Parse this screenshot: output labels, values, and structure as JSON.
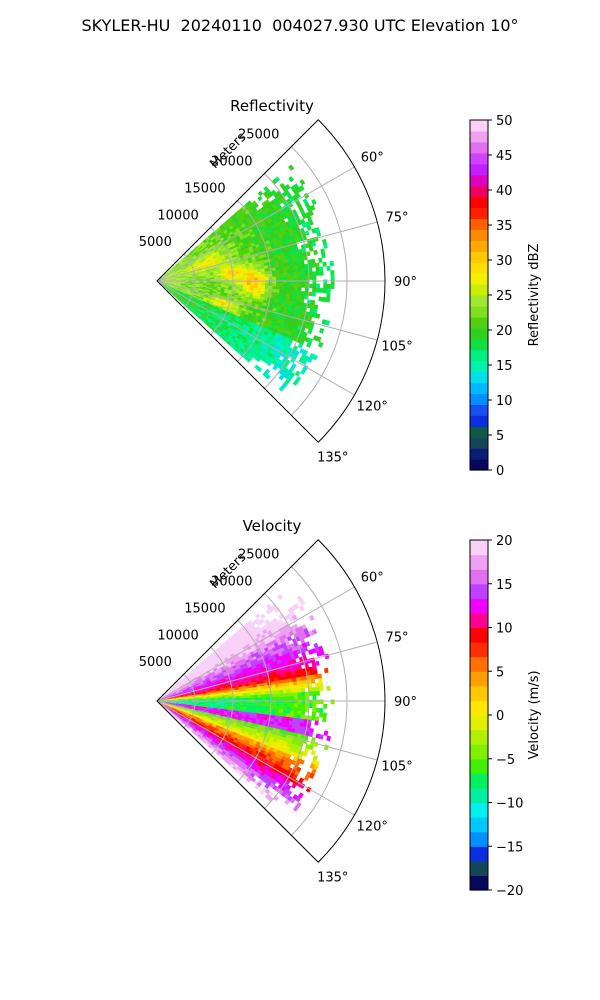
{
  "suptitle": "SKYLER-HU  20240110  004027.930 UTC Elevation 10°",
  "chart_data": [
    {
      "type": "heatmap",
      "projection": "polar-sector",
      "title": "Reflectivity",
      "range_label": "Meters",
      "range_ticks": [
        5000,
        10000,
        15000,
        20000,
        25000
      ],
      "range_tick_labels": [
        "5000",
        "10000",
        "15000",
        "20000",
        "25000"
      ],
      "rmax": 30000,
      "data_extent_m": 23000,
      "azimuth_range_deg": [
        45,
        135
      ],
      "azimuth_ticks": [
        60,
        75,
        90,
        105,
        120,
        135
      ],
      "azimuth_tick_labels": [
        "60°",
        "75°",
        "90°",
        "105°",
        "120°",
        "135°"
      ],
      "colorbar": {
        "label": "Reflectivity dBZ",
        "vmin": 0,
        "vmax": 50,
        "ticks": [
          0,
          5,
          10,
          15,
          20,
          25,
          30,
          35,
          40,
          45,
          50
        ],
        "tick_labels": [
          "0",
          "5",
          "10",
          "15",
          "20",
          "25",
          "30",
          "35",
          "40",
          "45",
          "50"
        ],
        "colors": [
          "#08085a",
          "#0a1e78",
          "#14465a",
          "#0f5a46",
          "#0a2ee0",
          "#1a4ef0",
          "#0090ff",
          "#00b8ff",
          "#00e0e8",
          "#00f0b0",
          "#00f080",
          "#10e040",
          "#30d020",
          "#50d010",
          "#80e020",
          "#a0e830",
          "#c8f000",
          "#f0f000",
          "#ffe000",
          "#ffc800",
          "#ffaa00",
          "#ff8c00",
          "#ff6000",
          "#ff2000",
          "#ff0000",
          "#f00060",
          "#e000c0",
          "#c020ff",
          "#d040ff",
          "#e070f0",
          "#f0a0f0",
          "#f8d0f8"
        ],
        "colors_note": "discrete bins from dark navy (0) to pale pink (50)"
      }
    },
    {
      "type": "heatmap",
      "projection": "polar-sector",
      "title": "Velocity",
      "range_label": "Meters",
      "range_ticks": [
        5000,
        10000,
        15000,
        20000,
        25000
      ],
      "range_tick_labels": [
        "5000",
        "10000",
        "15000",
        "20000",
        "25000"
      ],
      "rmax": 30000,
      "data_extent_m": 23000,
      "azimuth_range_deg": [
        45,
        135
      ],
      "azimuth_ticks": [
        60,
        75,
        90,
        105,
        120,
        135
      ],
      "azimuth_tick_labels": [
        "60°",
        "75°",
        "90°",
        "105°",
        "120°",
        "135°"
      ],
      "colorbar": {
        "label": "Velocity (m/s)",
        "vmin": -20,
        "vmax": 20,
        "ticks": [
          -20,
          -15,
          -10,
          -5,
          0,
          5,
          10,
          15,
          20
        ],
        "tick_labels": [
          "−20",
          "−15",
          "−10",
          "−5",
          "0",
          "5",
          "10",
          "15",
          "20"
        ],
        "colors": [
          "#08085a",
          "#14465a",
          "#0a2ee0",
          "#0090ff",
          "#00c8ff",
          "#00f0f0",
          "#00f0a0",
          "#00f060",
          "#40f000",
          "#80f000",
          "#b0f000",
          "#e0f000",
          "#ffe800",
          "#ffc800",
          "#ffa000",
          "#ff7000",
          "#ff3000",
          "#ff0000",
          "#ff0090",
          "#f000ff",
          "#c040ff",
          "#e070f0",
          "#f0a0f0",
          "#f8d0f8"
        ]
      }
    }
  ]
}
